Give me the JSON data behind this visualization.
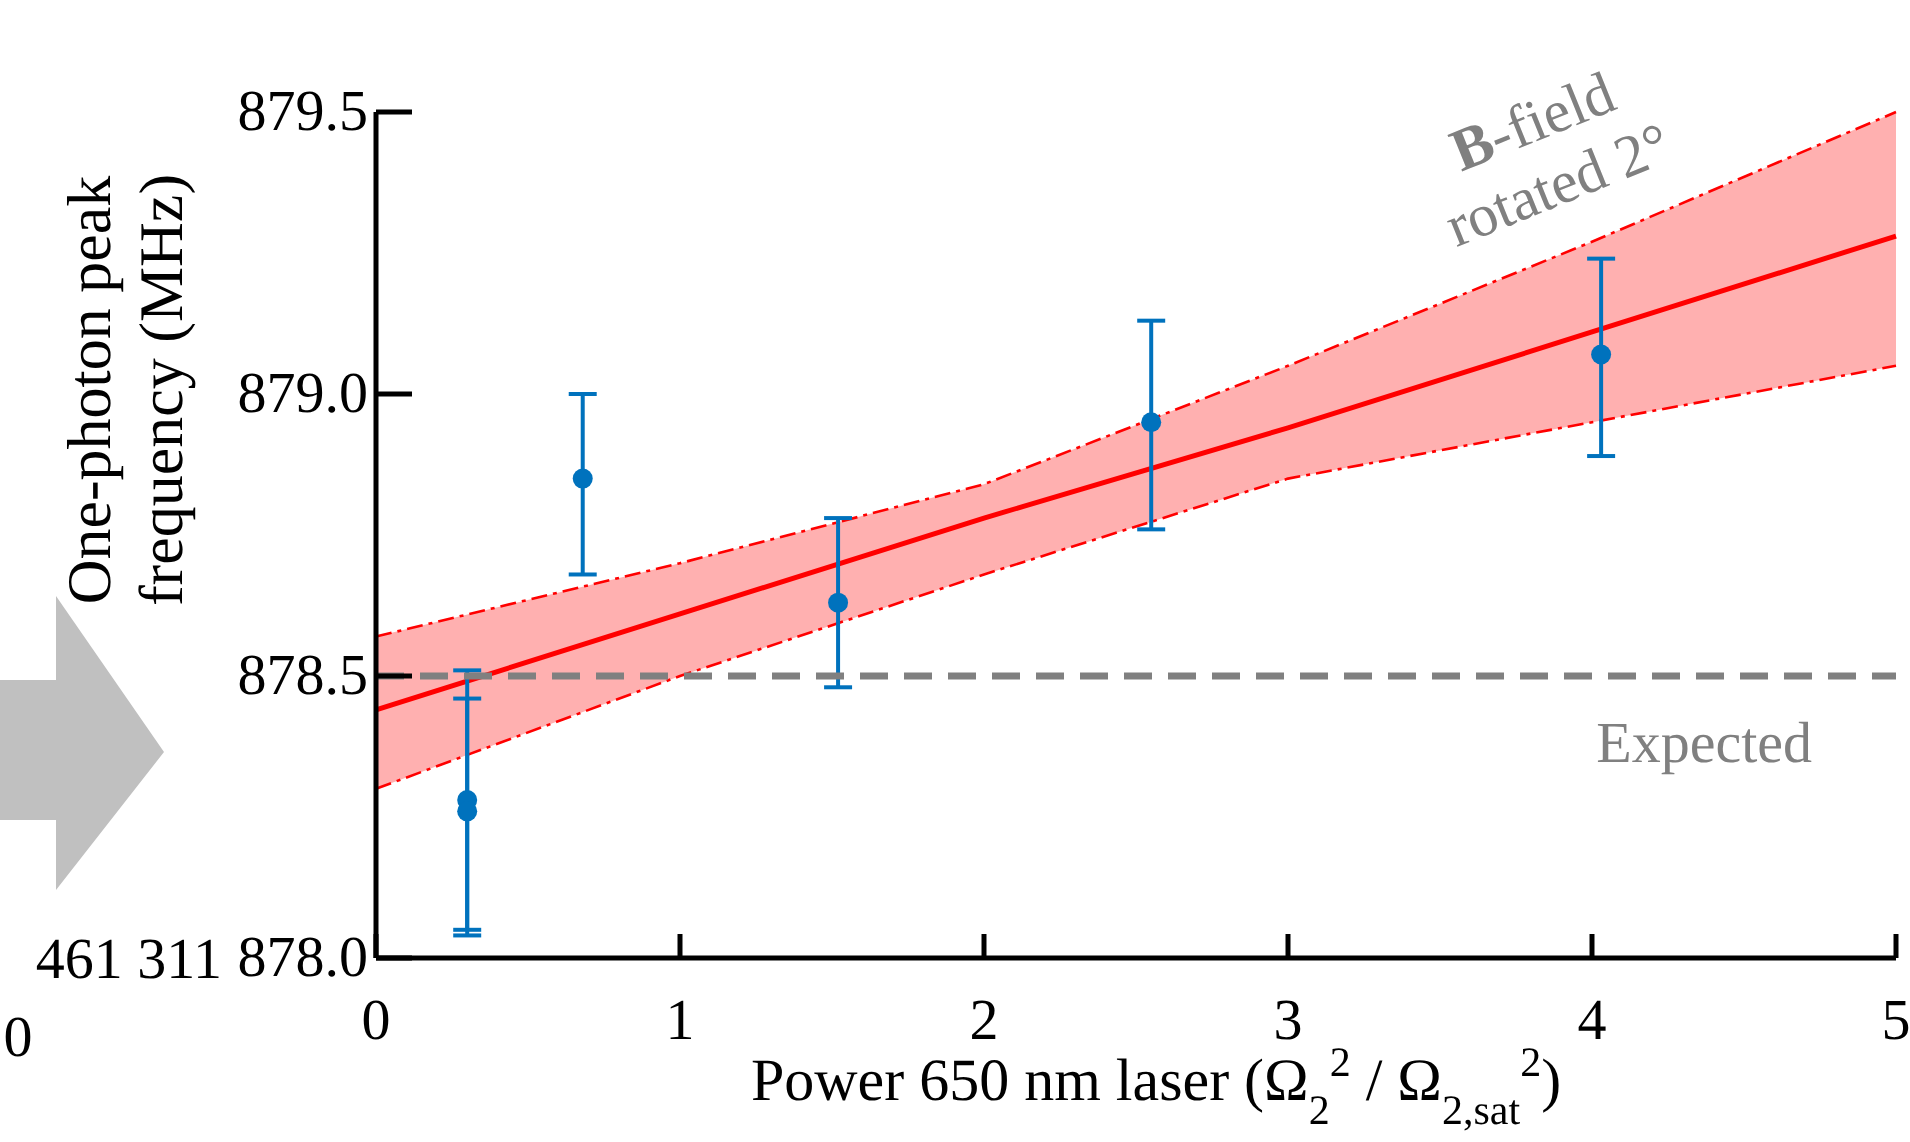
{
  "chart_data": {
    "type": "scatter",
    "xlabel": "Power 650 nm laser (Ω$_{2}$$^{2}$ / Ω$_{2,sat}$$^{2}$)",
    "ylabel": "One-photon peak frequency (MHz)",
    "xlim": [
      0,
      5
    ],
    "ylim": [
      878.0,
      879.5
    ],
    "xticks": [
      0,
      1,
      2,
      3,
      4,
      5
    ],
    "yticks": [
      {
        "value": 878.0,
        "label": "878.0"
      },
      {
        "value": 878.5,
        "label": "878.5"
      },
      {
        "value": 879.0,
        "label": "879.0"
      },
      {
        "value": 879.5,
        "label": "879.5"
      }
    ],
    "series": [
      {
        "type": "line",
        "color": "#ff0000",
        "x": [
          0,
          1,
          2,
          3,
          4,
          5
        ],
        "values": [
          878.44,
          878.61,
          878.78,
          878.94,
          879.11,
          879.28
        ],
        "lower": [
          878.3,
          878.5,
          878.68,
          878.85,
          878.95,
          879.05
        ],
        "upper": [
          878.57,
          878.7,
          878.84,
          879.05,
          879.27,
          879.5
        ]
      },
      {
        "type": "line",
        "color": "#ff0000",
        "line_style": "dashed",
        "x": [
          0,
          1,
          2,
          3,
          4,
          5
        ],
        "values": [
          878.57,
          878.7,
          878.84,
          879.05,
          879.27,
          879.5
        ]
      },
      {
        "type": "line",
        "color": "#ff0000",
        "line_style": "dashed",
        "x": [
          0,
          1,
          2,
          3,
          4,
          5
        ],
        "values": [
          878.3,
          878.5,
          878.68,
          878.85,
          878.95,
          879.05
        ]
      },
      {
        "color": "#0072bd",
        "marker": "circle",
        "x": [
          0.3,
          0.3,
          0.68,
          1.52,
          2.55,
          4.03
        ],
        "values": [
          878.28,
          878.26,
          878.85,
          878.63,
          878.95,
          879.07
        ],
        "errors": [
          [
            878.04,
            878.51
          ],
          [
            878.05,
            878.46
          ],
          [
            878.68,
            879.0
          ],
          [
            878.48,
            878.78
          ],
          [
            878.76,
            879.13
          ],
          [
            878.89,
            879.24
          ]
        ]
      }
    ],
    "ref_lines": [
      {
        "axis": "y",
        "value": 878.5,
        "label": "Expected",
        "color": "#808080",
        "line_style": "dashed"
      }
    ],
    "annotations": [
      "B-field rotated 2°",
      "0",
      "461 311"
    ],
    "grid": false
  }
}
